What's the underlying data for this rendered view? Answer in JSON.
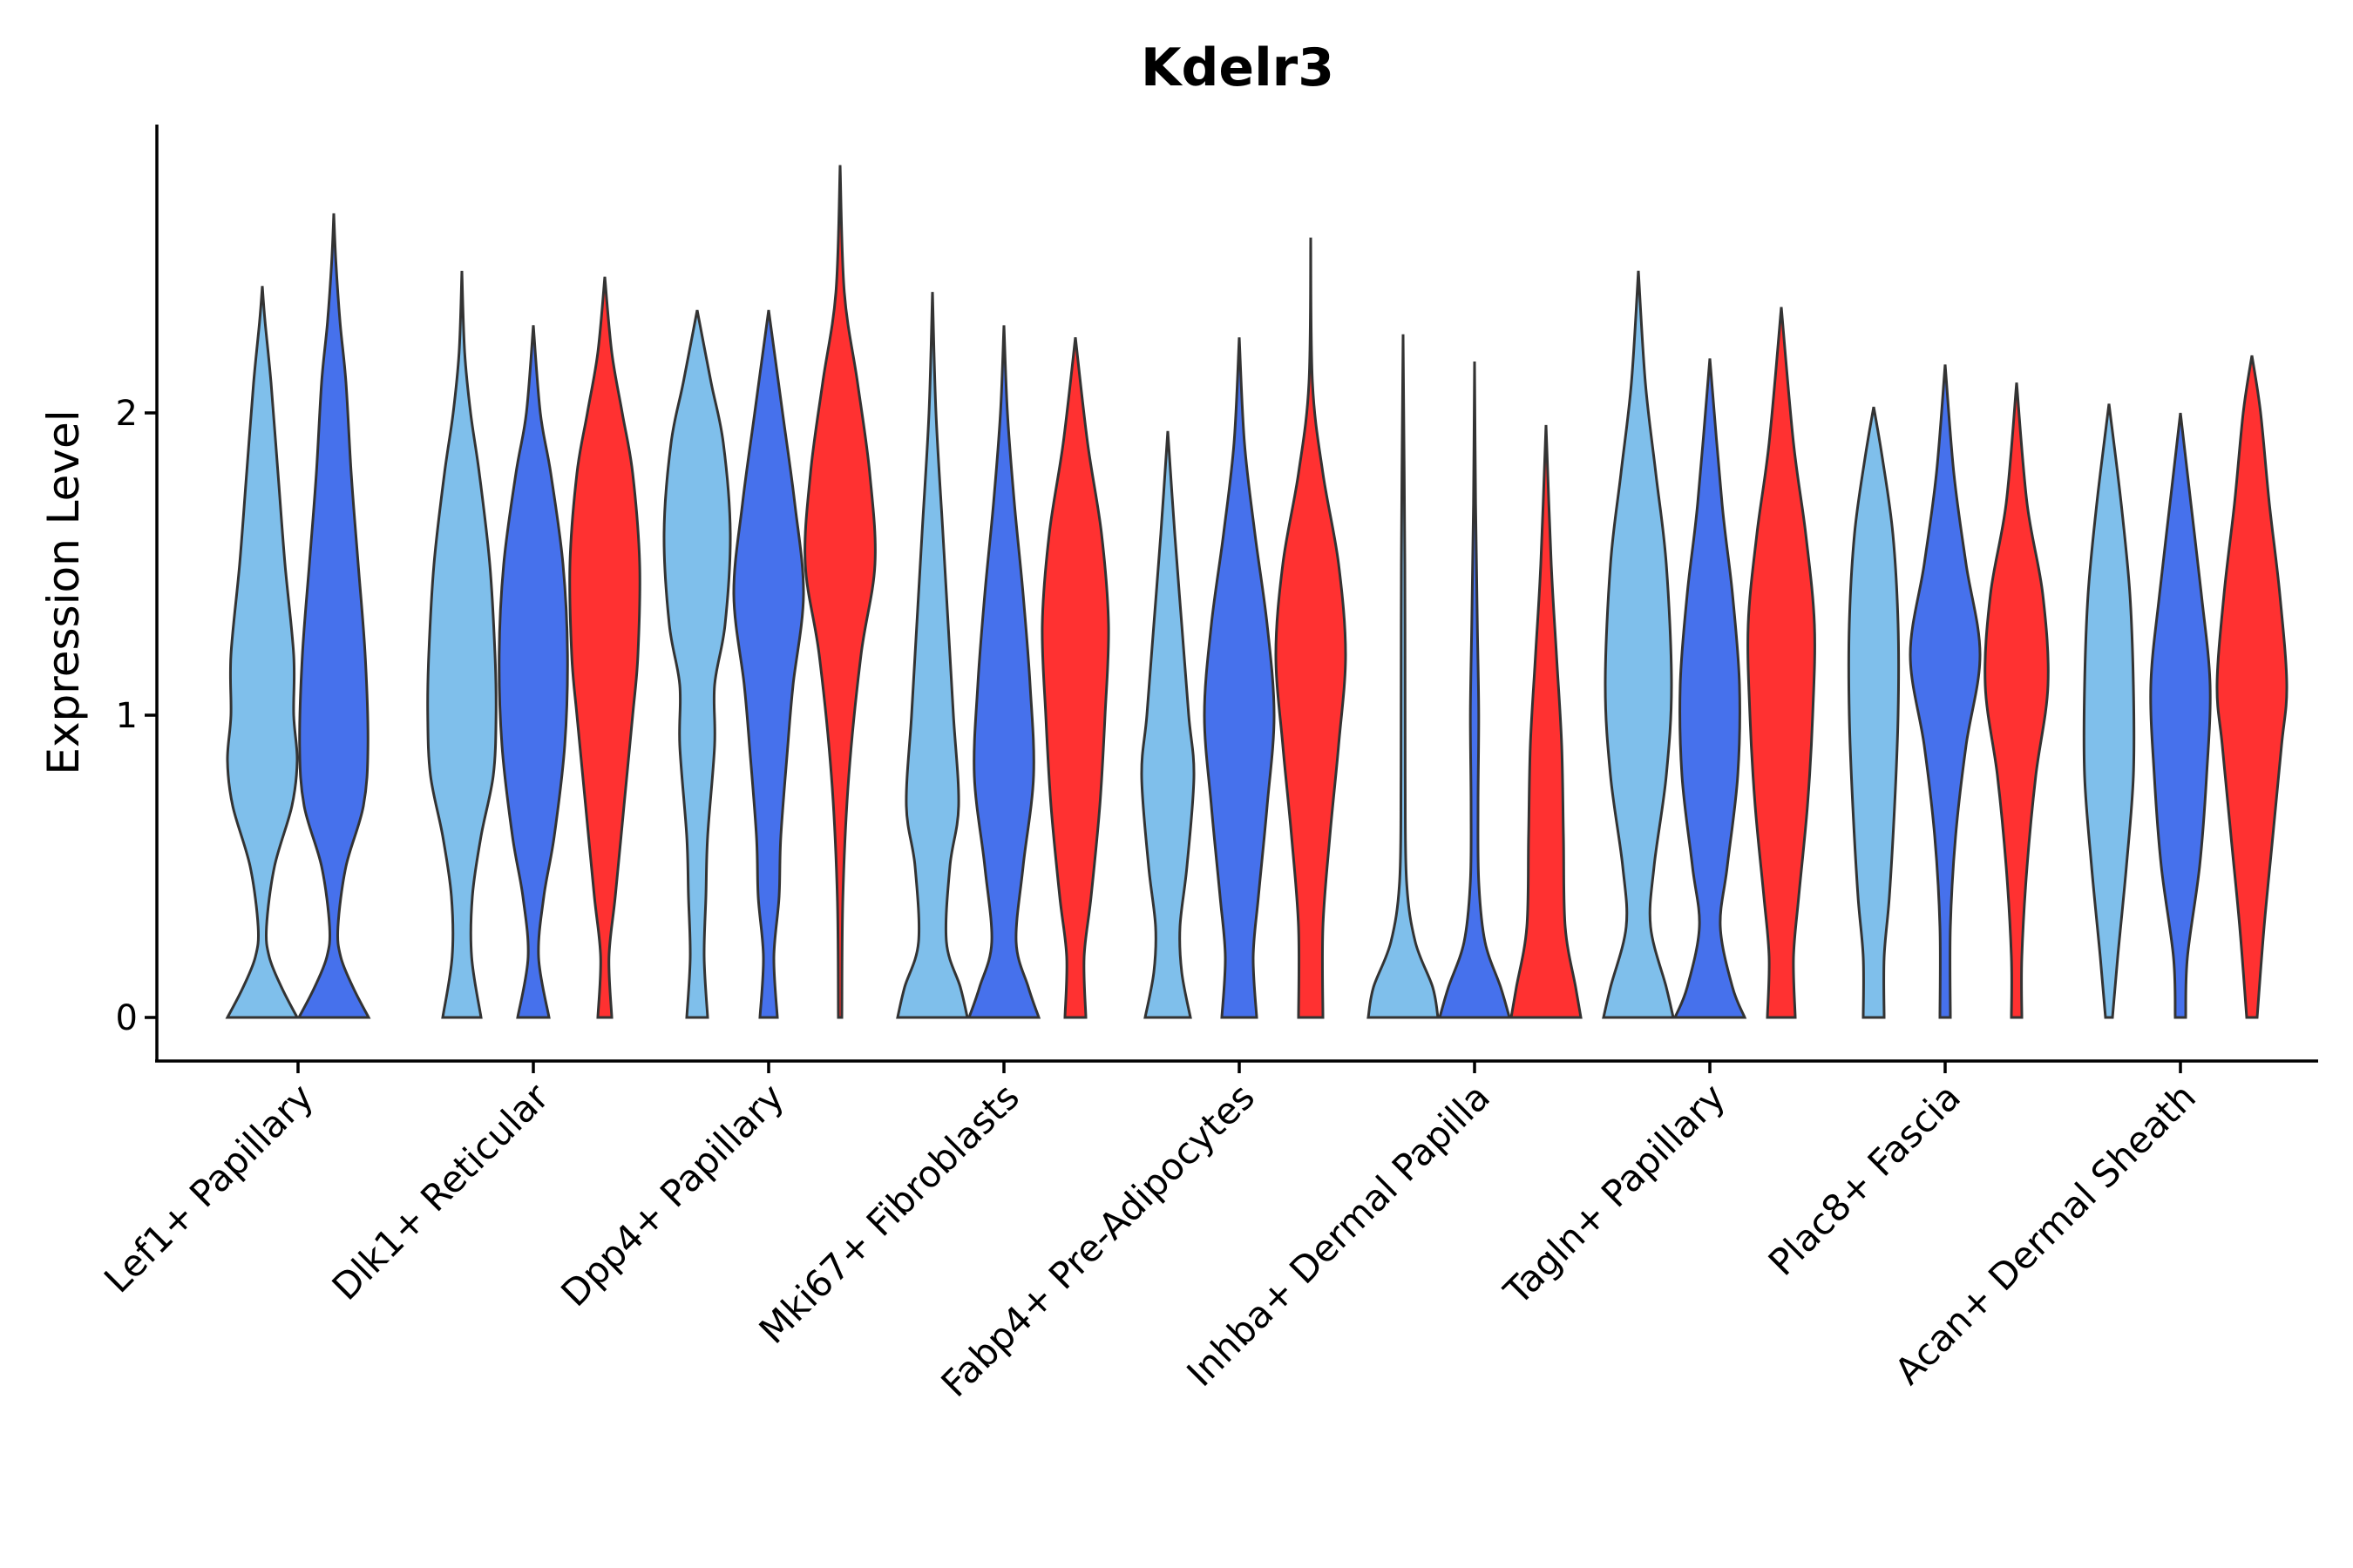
{
  "chart_data": {
    "type": "violin",
    "title": "Kdelr3",
    "xlabel": "",
    "ylabel": "Expression Level",
    "ylim": [
      -0.14,
      2.95
    ],
    "yticks": [
      0,
      1,
      2
    ],
    "grid": false,
    "legend": "none",
    "group_colors": [
      "#7fbfeb",
      "#4671ec",
      "#ff3131"
    ],
    "categories": [
      "Lef1+ Papillary",
      "Dlk1+ Reticular",
      "Dpp4+ Papillary",
      "Mki67+ Fibroblasts",
      "Fabp4+ Pre-Adipocytes",
      "Inhba+ Dermal Papilla",
      "Tagln+ Papillary",
      "Plac8+ Fascia",
      "Acan+ Dermal Sheath"
    ],
    "violins": [
      {
        "category": "Lef1+ Papillary",
        "group": 0,
        "max": 2.42,
        "density": [
          [
            0,
            1.0
          ],
          [
            0.1,
            0.55
          ],
          [
            0.2,
            0.2
          ],
          [
            0.3,
            0.12
          ],
          [
            0.5,
            0.35
          ],
          [
            0.7,
            0.85
          ],
          [
            0.85,
            1.0
          ],
          [
            1.0,
            0.9
          ],
          [
            1.2,
            0.9
          ],
          [
            1.5,
            0.65
          ],
          [
            1.8,
            0.45
          ],
          [
            2.1,
            0.25
          ],
          [
            2.3,
            0.08
          ],
          [
            2.42,
            0
          ]
        ]
      },
      {
        "category": "Lef1+ Papillary",
        "group": 1,
        "max": 2.66,
        "density": [
          [
            0,
            1.0
          ],
          [
            0.1,
            0.55
          ],
          [
            0.2,
            0.2
          ],
          [
            0.3,
            0.12
          ],
          [
            0.5,
            0.35
          ],
          [
            0.7,
            0.85
          ],
          [
            0.9,
            0.98
          ],
          [
            1.2,
            0.9
          ],
          [
            1.5,
            0.7
          ],
          [
            1.8,
            0.5
          ],
          [
            2.1,
            0.35
          ],
          [
            2.3,
            0.18
          ],
          [
            2.5,
            0.06
          ],
          [
            2.66,
            0
          ]
        ]
      },
      {
        "category": "Dlk1+ Reticular",
        "group": 0,
        "max": 2.47,
        "density": [
          [
            0,
            0.55
          ],
          [
            0.2,
            0.28
          ],
          [
            0.4,
            0.3
          ],
          [
            0.6,
            0.55
          ],
          [
            0.8,
            0.9
          ],
          [
            1.0,
            0.98
          ],
          [
            1.2,
            0.95
          ],
          [
            1.5,
            0.8
          ],
          [
            1.8,
            0.5
          ],
          [
            2.0,
            0.25
          ],
          [
            2.2,
            0.08
          ],
          [
            2.47,
            0
          ]
        ]
      },
      {
        "category": "Dlk1+ Reticular",
        "group": 1,
        "max": 2.29,
        "density": [
          [
            0,
            0.45
          ],
          [
            0.2,
            0.15
          ],
          [
            0.4,
            0.3
          ],
          [
            0.6,
            0.6
          ],
          [
            0.9,
            0.9
          ],
          [
            1.2,
            0.98
          ],
          [
            1.5,
            0.85
          ],
          [
            1.8,
            0.5
          ],
          [
            2.0,
            0.2
          ],
          [
            2.29,
            0
          ]
        ]
      },
      {
        "category": "Dlk1+ Reticular",
        "group": 2,
        "max": 2.45,
        "density": [
          [
            0,
            0.2
          ],
          [
            0.2,
            0.12
          ],
          [
            0.4,
            0.3
          ],
          [
            0.7,
            0.55
          ],
          [
            1.0,
            0.8
          ],
          [
            1.2,
            0.95
          ],
          [
            1.5,
            1.0
          ],
          [
            1.8,
            0.8
          ],
          [
            2.0,
            0.5
          ],
          [
            2.2,
            0.2
          ],
          [
            2.45,
            0
          ]
        ]
      },
      {
        "category": "Dpp4+ Papillary",
        "group": 0,
        "max": 2.34,
        "density": [
          [
            0,
            0.3
          ],
          [
            0.2,
            0.2
          ],
          [
            0.4,
            0.25
          ],
          [
            0.6,
            0.3
          ],
          [
            0.9,
            0.5
          ],
          [
            1.1,
            0.5
          ],
          [
            1.3,
            0.8
          ],
          [
            1.6,
            0.95
          ],
          [
            1.9,
            0.75
          ],
          [
            2.1,
            0.4
          ],
          [
            2.34,
            0
          ]
        ]
      },
      {
        "category": "Dpp4+ Papillary",
        "group": 1,
        "max": 2.34,
        "density": [
          [
            0,
            0.25
          ],
          [
            0.2,
            0.15
          ],
          [
            0.4,
            0.3
          ],
          [
            0.6,
            0.35
          ],
          [
            0.9,
            0.55
          ],
          [
            1.1,
            0.7
          ],
          [
            1.4,
            1.0
          ],
          [
            1.7,
            0.75
          ],
          [
            2.0,
            0.4
          ],
          [
            2.34,
            0
          ]
        ]
      },
      {
        "category": "Dpp4+ Papillary",
        "group": 2,
        "max": 2.82,
        "density": [
          [
            0,
            0.05
          ],
          [
            0.4,
            0.08
          ],
          [
            0.8,
            0.25
          ],
          [
            1.2,
            0.6
          ],
          [
            1.5,
            1.0
          ],
          [
            1.8,
            0.85
          ],
          [
            2.1,
            0.5
          ],
          [
            2.4,
            0.12
          ],
          [
            2.82,
            0
          ]
        ]
      },
      {
        "category": "Mki67+ Fibroblasts",
        "group": 0,
        "max": 2.4,
        "density": [
          [
            0,
            1.0
          ],
          [
            0.1,
            0.8
          ],
          [
            0.25,
            0.4
          ],
          [
            0.5,
            0.5
          ],
          [
            0.7,
            0.75
          ],
          [
            1.0,
            0.6
          ],
          [
            1.3,
            0.45
          ],
          [
            1.6,
            0.3
          ],
          [
            2.0,
            0.1
          ],
          [
            2.4,
            0
          ]
        ]
      },
      {
        "category": "Mki67+ Fibroblasts",
        "group": 1,
        "max": 2.29,
        "density": [
          [
            0,
            1.0
          ],
          [
            0.1,
            0.7
          ],
          [
            0.25,
            0.35
          ],
          [
            0.5,
            0.55
          ],
          [
            0.8,
            0.85
          ],
          [
            1.1,
            0.75
          ],
          [
            1.4,
            0.55
          ],
          [
            1.7,
            0.3
          ],
          [
            2.0,
            0.1
          ],
          [
            2.29,
            0
          ]
        ]
      },
      {
        "category": "Mki67+ Fibroblasts",
        "group": 2,
        "max": 2.25,
        "density": [
          [
            0,
            0.3
          ],
          [
            0.2,
            0.25
          ],
          [
            0.4,
            0.45
          ],
          [
            0.7,
            0.7
          ],
          [
            1.0,
            0.85
          ],
          [
            1.3,
            0.95
          ],
          [
            1.6,
            0.75
          ],
          [
            1.9,
            0.35
          ],
          [
            2.25,
            0
          ]
        ]
      },
      {
        "category": "Fabp4+ Pre-Adipocytes",
        "group": 0,
        "max": 1.94,
        "density": [
          [
            0,
            0.65
          ],
          [
            0.15,
            0.4
          ],
          [
            0.3,
            0.35
          ],
          [
            0.5,
            0.55
          ],
          [
            0.8,
            0.75
          ],
          [
            1.0,
            0.6
          ],
          [
            1.3,
            0.4
          ],
          [
            1.6,
            0.2
          ],
          [
            1.94,
            0
          ]
        ]
      },
      {
        "category": "Fabp4+ Pre-Adipocytes",
        "group": 1,
        "max": 2.25,
        "density": [
          [
            0,
            0.5
          ],
          [
            0.2,
            0.4
          ],
          [
            0.4,
            0.55
          ],
          [
            0.7,
            0.8
          ],
          [
            1.0,
            1.0
          ],
          [
            1.3,
            0.8
          ],
          [
            1.6,
            0.45
          ],
          [
            1.9,
            0.15
          ],
          [
            2.25,
            0
          ]
        ]
      },
      {
        "category": "Fabp4+ Pre-Adipocytes",
        "group": 2,
        "max": 2.58,
        "density": [
          [
            0,
            0.35
          ],
          [
            0.3,
            0.35
          ],
          [
            0.6,
            0.55
          ],
          [
            0.9,
            0.8
          ],
          [
            1.2,
            1.0
          ],
          [
            1.5,
            0.8
          ],
          [
            1.8,
            0.35
          ],
          [
            2.1,
            0.05
          ],
          [
            2.58,
            0
          ]
        ]
      },
      {
        "category": "Inhba+ Dermal Papilla",
        "group": 0,
        "max": 2.26,
        "density": [
          [
            0,
            1.0
          ],
          [
            0.1,
            0.85
          ],
          [
            0.25,
            0.35
          ],
          [
            0.45,
            0.1
          ],
          [
            0.8,
            0.06
          ],
          [
            1.5,
            0.05
          ],
          [
            2.26,
            0
          ]
        ]
      },
      {
        "category": "Inhba+ Dermal Papilla",
        "group": 1,
        "max": 2.17,
        "density": [
          [
            0,
            1.0
          ],
          [
            0.1,
            0.75
          ],
          [
            0.25,
            0.3
          ],
          [
            0.45,
            0.12
          ],
          [
            0.7,
            0.1
          ],
          [
            1.0,
            0.12
          ],
          [
            1.3,
            0.08
          ],
          [
            1.7,
            0.03
          ],
          [
            2.17,
            0
          ]
        ]
      },
      {
        "category": "Inhba+ Dermal Papilla",
        "group": 2,
        "max": 1.96,
        "density": [
          [
            0,
            1.0
          ],
          [
            0.1,
            0.85
          ],
          [
            0.3,
            0.55
          ],
          [
            0.6,
            0.5
          ],
          [
            0.9,
            0.45
          ],
          [
            1.2,
            0.3
          ],
          [
            1.5,
            0.15
          ],
          [
            1.96,
            0
          ]
        ]
      },
      {
        "category": "Tagln+ Papillary",
        "group": 0,
        "max": 2.47,
        "density": [
          [
            0,
            1.0
          ],
          [
            0.1,
            0.8
          ],
          [
            0.3,
            0.35
          ],
          [
            0.5,
            0.45
          ],
          [
            0.8,
            0.8
          ],
          [
            1.1,
            0.95
          ],
          [
            1.5,
            0.8
          ],
          [
            1.8,
            0.5
          ],
          [
            2.1,
            0.2
          ],
          [
            2.47,
            0
          ]
        ]
      },
      {
        "category": "Tagln+ Papillary",
        "group": 1,
        "max": 2.18,
        "density": [
          [
            0,
            1.0
          ],
          [
            0.1,
            0.65
          ],
          [
            0.3,
            0.3
          ],
          [
            0.5,
            0.5
          ],
          [
            0.8,
            0.8
          ],
          [
            1.1,
            0.85
          ],
          [
            1.4,
            0.65
          ],
          [
            1.7,
            0.35
          ],
          [
            2.18,
            0
          ]
        ]
      },
      {
        "category": "Tagln+ Papillary",
        "group": 2,
        "max": 2.35,
        "density": [
          [
            0,
            0.4
          ],
          [
            0.2,
            0.35
          ],
          [
            0.4,
            0.5
          ],
          [
            0.7,
            0.75
          ],
          [
            1.0,
            0.9
          ],
          [
            1.3,
            0.95
          ],
          [
            1.6,
            0.7
          ],
          [
            1.9,
            0.35
          ],
          [
            2.35,
            0
          ]
        ]
      },
      {
        "category": "Plac8+ Fascia",
        "group": 0,
        "max": 2.02,
        "density": [
          [
            0,
            0.3
          ],
          [
            0.2,
            0.3
          ],
          [
            0.4,
            0.45
          ],
          [
            0.7,
            0.6
          ],
          [
            1.0,
            0.7
          ],
          [
            1.3,
            0.7
          ],
          [
            1.6,
            0.55
          ],
          [
            1.85,
            0.25
          ],
          [
            2.02,
            0
          ]
        ]
      },
      {
        "category": "Plac8+ Fascia",
        "group": 1,
        "max": 2.16,
        "density": [
          [
            0,
            0.15
          ],
          [
            0.3,
            0.15
          ],
          [
            0.6,
            0.3
          ],
          [
            0.9,
            0.6
          ],
          [
            1.2,
            1.0
          ],
          [
            1.5,
            0.6
          ],
          [
            1.8,
            0.25
          ],
          [
            2.16,
            0
          ]
        ]
      },
      {
        "category": "Plac8+ Fascia",
        "group": 2,
        "max": 2.1,
        "density": [
          [
            0,
            0.15
          ],
          [
            0.2,
            0.15
          ],
          [
            0.5,
            0.3
          ],
          [
            0.8,
            0.55
          ],
          [
            1.1,
            0.9
          ],
          [
            1.4,
            0.75
          ],
          [
            1.7,
            0.3
          ],
          [
            2.1,
            0
          ]
        ]
      },
      {
        "category": "Acan+ Dermal Sheath",
        "group": 0,
        "max": 2.03,
        "density": [
          [
            0,
            0.1
          ],
          [
            0.2,
            0.25
          ],
          [
            0.5,
            0.5
          ],
          [
            0.8,
            0.7
          ],
          [
            1.1,
            0.7
          ],
          [
            1.4,
            0.6
          ],
          [
            1.7,
            0.35
          ],
          [
            2.03,
            0
          ]
        ]
      },
      {
        "category": "Acan+ Dermal Sheath",
        "group": 1,
        "max": 2.0,
        "density": [
          [
            0,
            0.15
          ],
          [
            0.2,
            0.2
          ],
          [
            0.5,
            0.55
          ],
          [
            0.8,
            0.75
          ],
          [
            1.1,
            0.85
          ],
          [
            1.4,
            0.6
          ],
          [
            1.7,
            0.3
          ],
          [
            2.0,
            0
          ]
        ]
      },
      {
        "category": "Acan+ Dermal Sheath",
        "group": 2,
        "max": 2.19,
        "density": [
          [
            0,
            0.15
          ],
          [
            0.3,
            0.35
          ],
          [
            0.6,
            0.6
          ],
          [
            0.9,
            0.85
          ],
          [
            1.1,
            1.0
          ],
          [
            1.4,
            0.8
          ],
          [
            1.7,
            0.5
          ],
          [
            2.0,
            0.25
          ],
          [
            2.19,
            0
          ]
        ]
      }
    ]
  }
}
